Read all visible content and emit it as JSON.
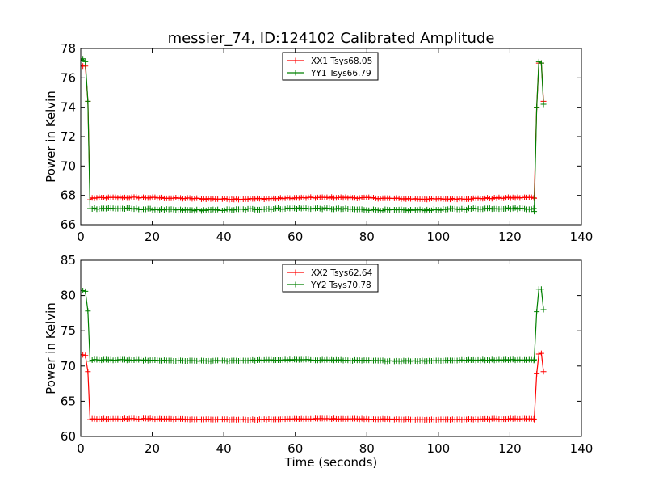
{
  "title": "messier_74, ID:124102 Calibrated Amplitude",
  "chart_data": [
    {
      "type": "line",
      "ylabel": "Power in Kelvin",
      "xlabel": "",
      "xlim": [
        0,
        140
      ],
      "ylim": [
        66,
        78
      ],
      "xticks": [
        0,
        20,
        40,
        60,
        80,
        100,
        120,
        140
      ],
      "yticks": [
        66,
        68,
        70,
        72,
        74,
        76,
        78
      ],
      "legend_position": "top-center",
      "marker": "+",
      "series": [
        {
          "name": "XX1 Tsys68.05",
          "color": "#ff0000",
          "baseline": 67.8,
          "noise": 0.08,
          "x": [
            0,
            0.6,
            1.3,
            2.0,
            2.6,
            126.8,
            127.5,
            128.1,
            128.8,
            129.4
          ],
          "y": [
            76.8,
            76.8,
            76.8,
            74.4,
            67.7,
            67.8,
            74.0,
            77.0,
            77.0,
            74.4
          ]
        },
        {
          "name": "YY1 Tsys66.79",
          "color": "#008000",
          "baseline": 67.05,
          "noise": 0.1,
          "x": [
            0,
            0.6,
            1.3,
            2.0,
            2.6,
            126.8,
            127.5,
            128.1,
            128.8,
            129.4
          ],
          "y": [
            77.2,
            77.3,
            77.1,
            74.4,
            67.1,
            66.9,
            74.0,
            77.1,
            77.0,
            74.2
          ]
        }
      ]
    },
    {
      "type": "line",
      "ylabel": "Power in Kelvin",
      "xlabel": "Time (seconds)",
      "xlim": [
        0,
        140
      ],
      "ylim": [
        60,
        85
      ],
      "xticks": [
        0,
        20,
        40,
        60,
        80,
        100,
        120,
        140
      ],
      "yticks": [
        60,
        65,
        70,
        75,
        80,
        85
      ],
      "legend_position": "top-center",
      "marker": "+",
      "series": [
        {
          "name": "XX2 Tsys62.64",
          "color": "#ff0000",
          "baseline": 62.45,
          "noise": 0.1,
          "x": [
            0,
            0.6,
            1.3,
            2.0,
            2.6,
            126.8,
            127.5,
            128.1,
            128.8,
            129.4
          ],
          "y": [
            71.6,
            71.6,
            71.5,
            69.2,
            62.4,
            62.4,
            68.9,
            71.7,
            71.8,
            69.2
          ]
        },
        {
          "name": "YY2 Tsys70.78",
          "color": "#008000",
          "baseline": 70.8,
          "noise": 0.12,
          "x": [
            0,
            0.6,
            1.3,
            2.0,
            2.6,
            126.8,
            127.5,
            128.1,
            128.8,
            129.4
          ],
          "y": [
            80.7,
            80.7,
            80.6,
            77.8,
            70.7,
            70.9,
            77.7,
            80.9,
            80.9,
            78.0
          ]
        }
      ]
    }
  ]
}
